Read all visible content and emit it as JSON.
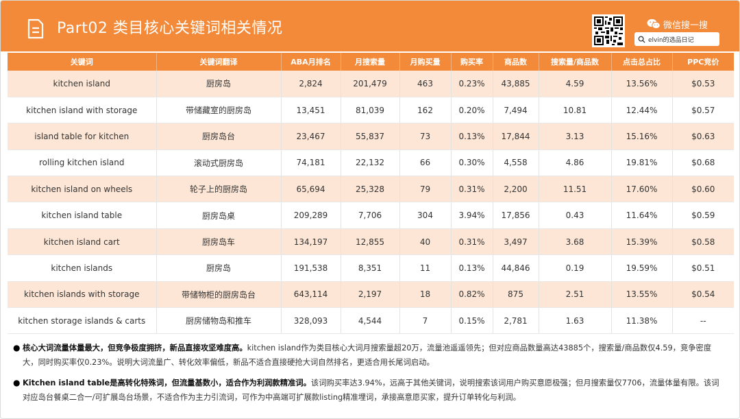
{
  "header": {
    "title": "Part02 类目核心关键词相关情况",
    "wechat_label": "微信搜一搜",
    "search_value": "elvin的选品日记"
  },
  "table": {
    "columns": [
      "关键词",
      "关键词翻译",
      "ABA月排名",
      "月搜索量",
      "月购买量",
      "购买率",
      "商品数",
      "搜索量/商品数",
      "点击总占比",
      "PPC竞价"
    ],
    "rows": [
      [
        "kitchen island",
        "厨房岛",
        "2,824",
        "201,479",
        "463",
        "0.23%",
        "43,885",
        "4.59",
        "13.56%",
        "$0.53"
      ],
      [
        "kitchen island with storage",
        "带储藏室的厨房岛",
        "13,451",
        "81,039",
        "162",
        "0.20%",
        "7,494",
        "10.81",
        "12.44%",
        "$0.57"
      ],
      [
        "island table for kitchen",
        "厨房岛台",
        "23,467",
        "55,837",
        "73",
        "0.13%",
        "17,844",
        "3.13",
        "15.16%",
        "$0.63"
      ],
      [
        "rolling kitchen island",
        "滚动式厨房岛",
        "74,181",
        "22,132",
        "66",
        "0.30%",
        "4,558",
        "4.86",
        "19.81%",
        "$0.68"
      ],
      [
        "kitchen island on wheels",
        "轮子上的厨房岛",
        "65,694",
        "25,328",
        "79",
        "0.31%",
        "2,200",
        "11.51",
        "17.60%",
        "$0.60"
      ],
      [
        "kitchen island table",
        "厨房岛桌",
        "209,289",
        "7,706",
        "304",
        "3.94%",
        "17,856",
        "0.43",
        "11.64%",
        "$0.59"
      ],
      [
        "kitchen island cart",
        "厨房岛车",
        "134,197",
        "12,855",
        "40",
        "0.31%",
        "3,497",
        "3.68",
        "15.39%",
        "$0.58"
      ],
      [
        "kitchen islands",
        "厨房岛",
        "191,538",
        "8,351",
        "11",
        "0.13%",
        "44,846",
        "0.19",
        "19.59%",
        "$0.51"
      ],
      [
        "kitchen islands with storage",
        "带储物柜的厨房岛台",
        "643,114",
        "2,197",
        "18",
        "0.82%",
        "875",
        "2.51",
        "13.55%",
        "$0.54"
      ],
      [
        "kitchen storage islands & carts",
        "厨房储物岛和推车",
        "328,093",
        "4,544",
        "7",
        "0.15%",
        "2,781",
        "1.63",
        "11.38%",
        "--"
      ]
    ]
  },
  "notes": [
    {
      "bullet": "●",
      "bold": "核心大词流量体量最大，但竞争极度拥挤，新品直接攻坚难度高。",
      "text": "kitchen island作为类目核心大词月搜索量超20万，流量池遥遥领先；但对应商品数量高达43885个，搜索量/商品数仅4.59，竞争密度大，同时购买率仅0.23%。说明大词流量广、转化效率偏低，新品不适合直接硬抢大词自然排名，更适合用长尾词启动。"
    },
    {
      "bullet": "●",
      "bold": "Kitchen island table是高转化特殊词，但流量基数小，适合作为利润款精准词。",
      "text": "该词购买率达3.94%，远高于其他关键词，说明搜索该词用户购买意愿极强；但月搜索量仅7706，流量体量有限。该词对应岛台餐桌二合一/可扩展岛台场景，不适合作为主力引流词，可作为中高端可扩展款listing精准埋词，承接高意愿买家，提升订单转化与利润。"
    }
  ],
  "colors": {
    "accent": "#f28a3a",
    "row_alt": "#fde6d5"
  },
  "icons": [
    "document-icon",
    "qr-code",
    "wechat-icon",
    "search-icon"
  ]
}
